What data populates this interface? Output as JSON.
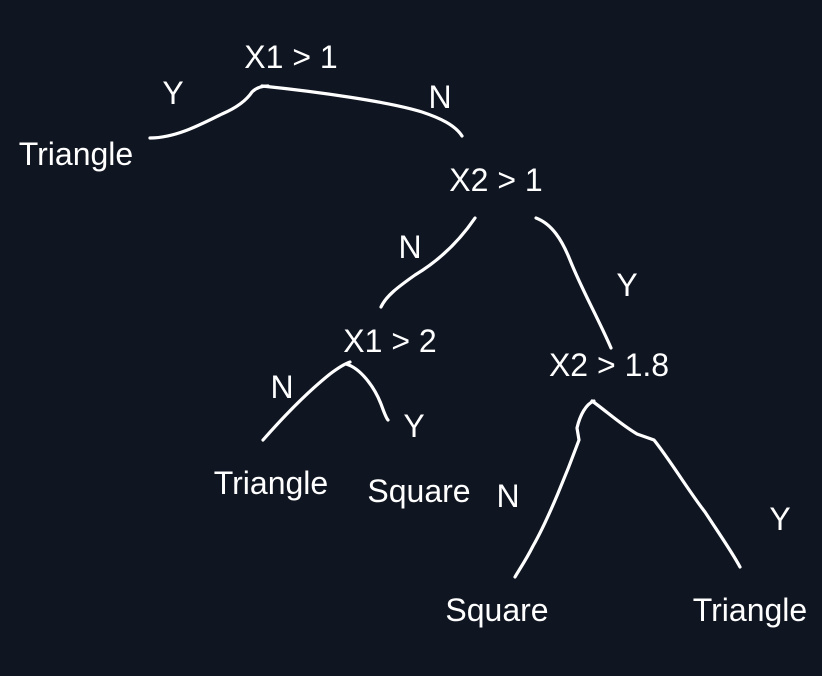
{
  "canvas": {
    "background": "#0f1521",
    "ink": "#ffffff"
  },
  "tree": {
    "root": {
      "condition": "X1 > 1",
      "yes_label": "Y",
      "no_label": "N",
      "yes_leaf": "Triangle",
      "no_node": {
        "condition": "X2 > 1",
        "no_label": "N",
        "yes_label": "Y",
        "no_node": {
          "condition": "X1 > 2",
          "no_label": "N",
          "yes_label": "Y",
          "no_leaf": "Triangle",
          "yes_leaf": "Square"
        },
        "yes_node": {
          "condition": "X2 > 1.8",
          "no_label": "N",
          "yes_label": "Y",
          "no_leaf": "Square",
          "yes_leaf": "Triangle"
        }
      }
    }
  }
}
